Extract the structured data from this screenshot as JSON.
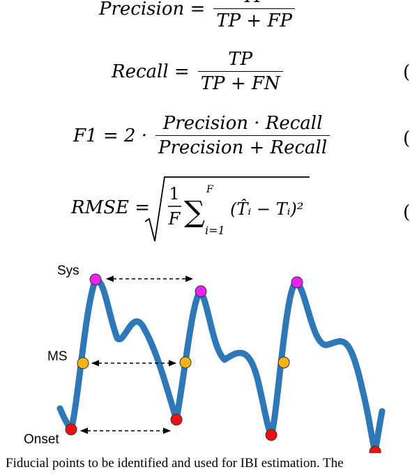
{
  "equations": {
    "precision": {
      "lhs": "Precision =",
      "numerator": "TP",
      "denominator": "TP + FP"
    },
    "recall": {
      "lhs": "Recall =",
      "numerator": "TP",
      "denominator": "TP + FN",
      "number_fragment": "("
    },
    "f1": {
      "lhs": "F1 = 2 ·",
      "numerator": "Precision · Recall",
      "denominator": "Precision + Recall",
      "number_fragment": "("
    },
    "rmse": {
      "lhs": "RMSE =",
      "frac_num": "1",
      "frac_den": "F",
      "sum_upper": "F",
      "sum_lower": "i=1",
      "term": "(T̂ᵢ − Tᵢ)²",
      "number_fragment": "("
    }
  },
  "figure": {
    "labels": {
      "sys": "Sys",
      "ms": "MS",
      "onset": "Onset"
    },
    "colors": {
      "waveform": "#2F78B8",
      "sys_point": "#EE22EE",
      "ms_point": "#F6B21A",
      "onset_point": "#EE1111",
      "arrow": "#000000"
    }
  },
  "caption": {
    "text": "Fiducial points to be identified and used for IBI estimation. The"
  }
}
